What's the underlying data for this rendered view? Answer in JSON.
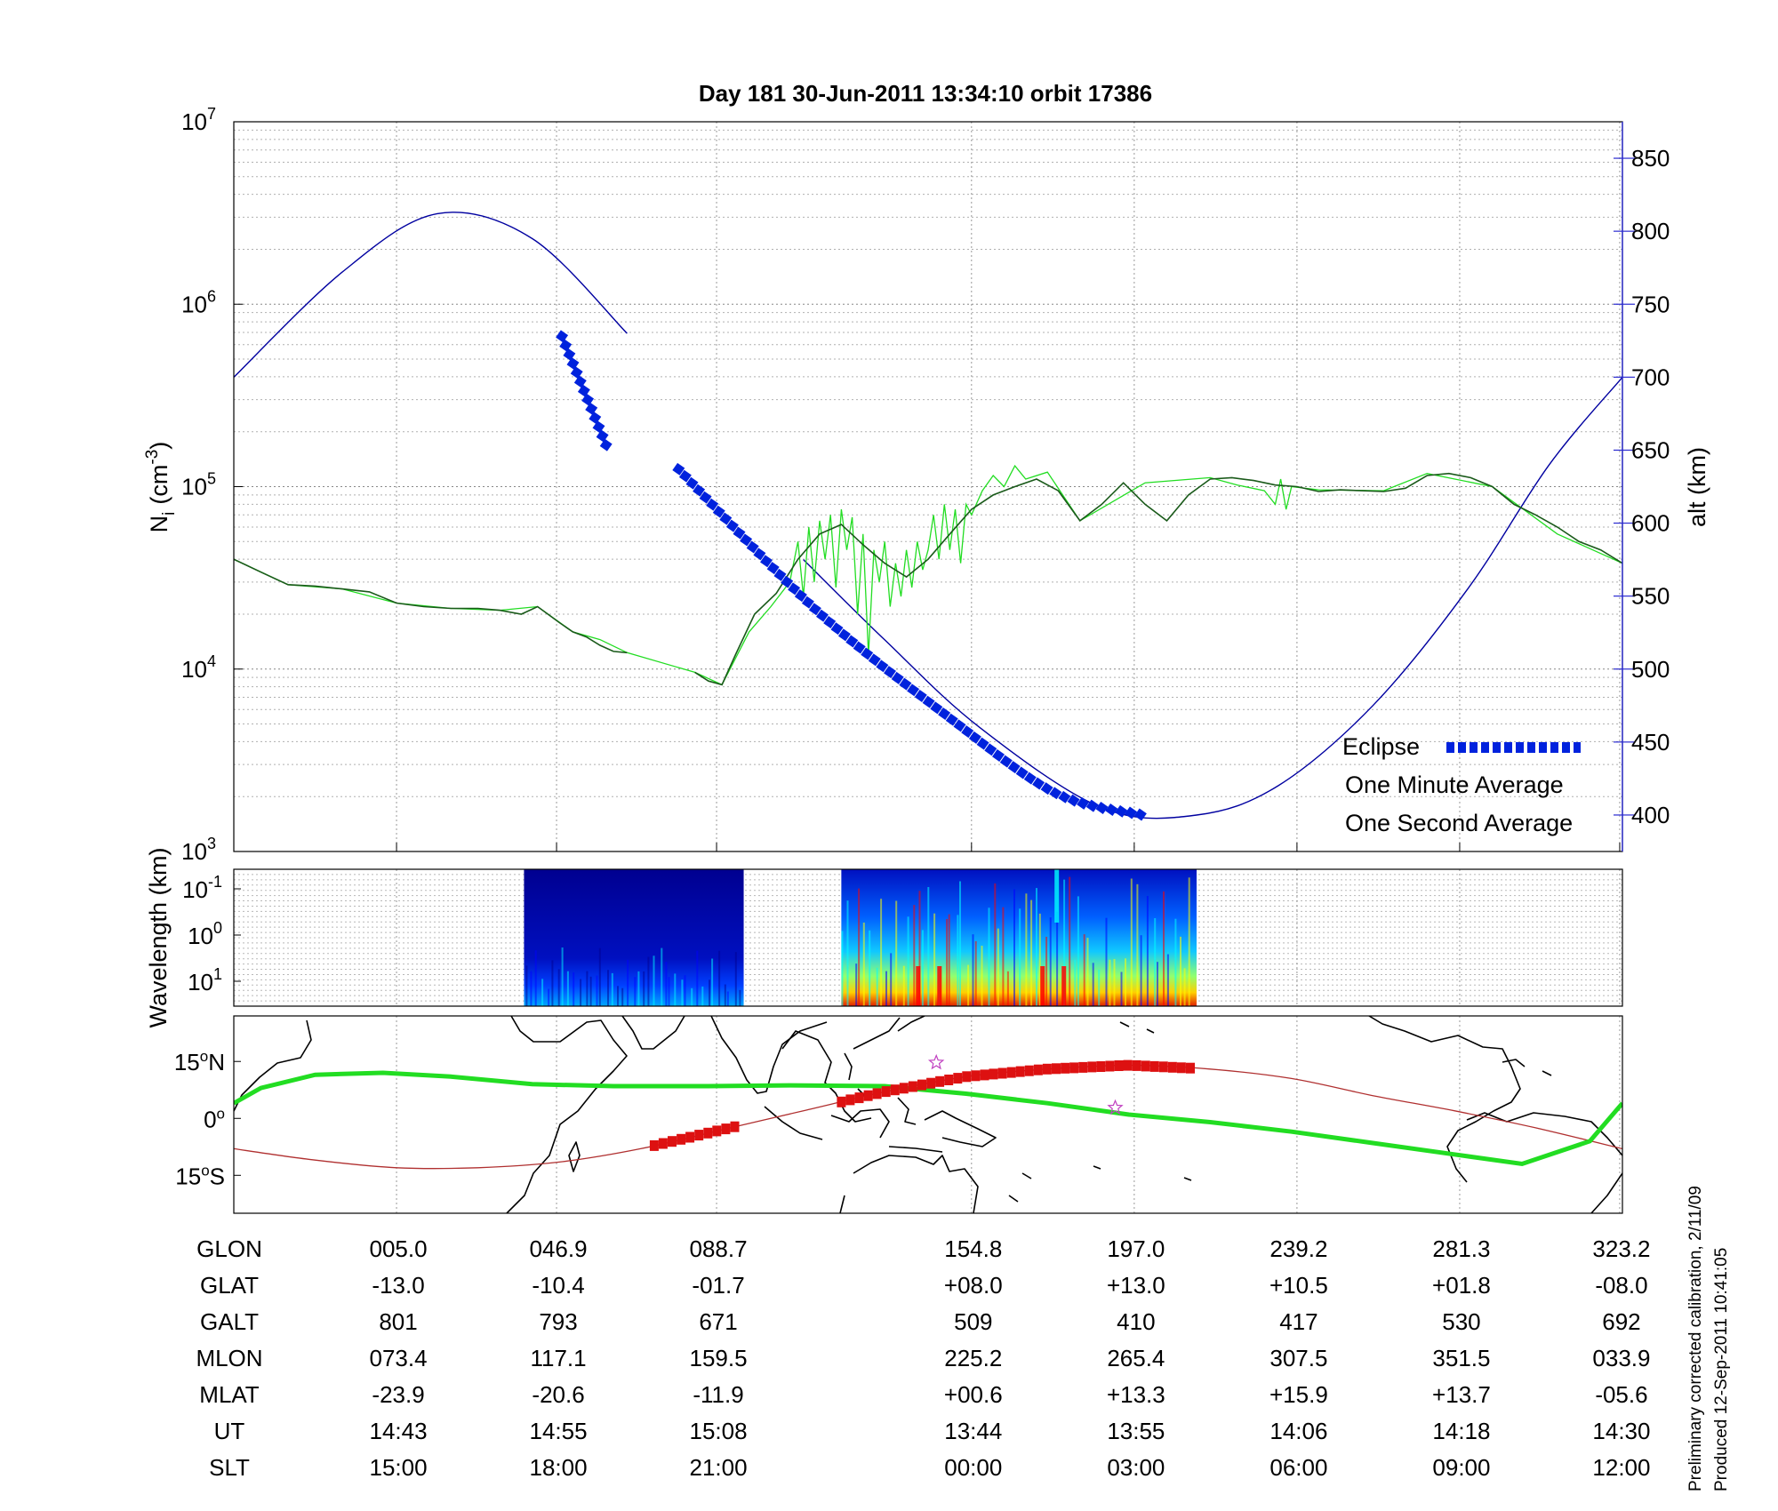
{
  "title": "Day 181  30-Jun-2011 13:34:10   orbit 17386",
  "colors": {
    "altitude": "#0000a0",
    "eclipse": "#0022dd",
    "one_minute": "#1a5a1a",
    "one_second": "#22dd22",
    "track_eclipse": "#dd1111",
    "track_line": "#b03030",
    "mag_equator": "#22dd22",
    "right_axis": "#2a2ad0"
  },
  "chart_data": [
    {
      "type": "line",
      "panel": "ion-density",
      "ylabel_main": "N",
      "ylabel_sub": "i",
      "ylabel_unit": "(cm",
      "ylabel_unit_exp": "-3",
      "ylabel_unit_close": ")",
      "y_scale": "log",
      "ylim": [
        1000,
        10000000
      ],
      "y_ticks": [
        {
          "base": "10",
          "exp": "3",
          "value": 1000
        },
        {
          "base": "10",
          "exp": "4",
          "value": 10000
        },
        {
          "base": "10",
          "exp": "5",
          "value": 100000
        },
        {
          "base": "10",
          "exp": "6",
          "value": 1000000
        },
        {
          "base": "10",
          "exp": "7",
          "value": 10000000
        }
      ],
      "y2label": "alt (km)",
      "y2lim": [
        375,
        875
      ],
      "y2_ticks": [
        "400",
        "450",
        "500",
        "550",
        "600",
        "650",
        "700",
        "750",
        "800",
        "850"
      ],
      "x_ticks_ut": [
        "14:43",
        "14:55",
        "15:08",
        "13:44",
        "13:55",
        "14:06",
        "14:18",
        "14:30"
      ],
      "grid": true,
      "legend_position": "bottom-right",
      "legend": [
        "Eclipse",
        "One Minute Average",
        "One Second Average"
      ],
      "series": [
        {
          "name": "One Minute Average",
          "x_minutes": [
            0,
            10,
            20,
            30,
            40,
            50,
            60,
            70,
            80,
            90,
            98,
            106,
            112,
            120,
            125,
            130,
            135,
            140,
            145,
            150,
            155,
            160,
            165,
            170,
            175,
            180,
            185,
            192,
            200,
            208,
            216,
            224,
            232,
            240,
            248,
            256,
            264,
            272,
            280,
            288,
            296,
            304,
            312,
            320,
            328,
            336,
            344,
            352,
            360,
            368,
            376,
            384,
            392,
            400,
            408,
            416,
            424,
            432,
            440,
            448,
            456,
            464,
            472,
            480,
            488,
            496,
            504,
            512
          ],
          "values": [
            40000,
            34000,
            29000,
            28500,
            27500,
            26500,
            23000,
            22000,
            21500,
            21500,
            21000,
            20000,
            22000,
            18000,
            16000,
            15000,
            13500,
            12500,
            12300,
            null,
            null,
            null,
            null,
            9600,
            8600,
            8200,
            12000,
            20000,
            26000,
            40000,
            55000,
            62000,
            48000,
            38000,
            32000,
            40000,
            55000,
            75000,
            90000,
            100000,
            110000,
            95000,
            65000,
            80000,
            105000,
            80000,
            65000,
            90000,
            110000,
            112000,
            108000,
            102000,
            100000,
            94000,
            96000,
            95000,
            94000,
            98000,
            115000,
            118000,
            112000,
            100000,
            80000,
            70000,
            60000,
            50000,
            45000,
            38000
          ]
        },
        {
          "name": "One Second Average",
          "x_minutes": [
            0,
            20,
            40,
            60,
            80,
            98,
            112,
            125,
            135,
            145,
            170,
            180,
            190,
            198,
            205,
            208,
            210,
            212,
            214,
            216,
            218,
            220,
            222,
            224,
            226,
            228,
            230,
            232,
            234,
            236,
            238,
            240,
            242,
            244,
            246,
            248,
            250,
            252,
            254,
            256,
            258,
            260,
            262,
            264,
            266,
            268,
            270,
            272,
            276,
            280,
            284,
            288,
            292,
            300,
            312,
            336,
            360,
            370,
            380,
            384,
            386,
            388,
            390,
            400,
            424,
            440,
            464,
            488,
            512
          ],
          "values": [
            40000,
            29000,
            27500,
            23000,
            21500,
            21000,
            22000,
            16000,
            14500,
            12300,
            9600,
            8200,
            16000,
            22000,
            30000,
            50000,
            25000,
            60000,
            30000,
            65000,
            40000,
            70000,
            28000,
            75000,
            45000,
            68000,
            20000,
            55000,
            12000,
            45000,
            30000,
            50000,
            22000,
            38000,
            25000,
            45000,
            28000,
            50000,
            35000,
            45000,
            70000,
            40000,
            80000,
            45000,
            75000,
            38000,
            80000,
            70000,
            95000,
            115000,
            100000,
            130000,
            110000,
            120000,
            65000,
            105000,
            112000,
            102000,
            95000,
            80000,
            110000,
            75000,
            100000,
            96000,
            95000,
            118000,
            100000,
            55000,
            38000
          ]
        },
        {
          "name": "altitude",
          "x_minutes": [
            0,
            40,
            75,
            110,
            145,
            175,
            210,
            240,
            275,
            320,
            355,
            385,
            420,
            455,
            485,
            512
          ],
          "values_km": [
            700,
            772,
            812,
            795,
            730,
            null,
            575,
            520,
            460,
            405,
            400,
            420,
            475,
            555,
            640,
            700
          ]
        },
        {
          "name": "Eclipse",
          "segments": [
            {
              "x_minutes": [
                121,
                138
              ],
              "values_km": [
                728,
                650
              ]
            },
            {
              "x_minutes": [
                164,
                215,
                265,
                303,
                335
              ],
              "values_km": [
                637,
                540,
                465,
                415,
                400
              ]
            }
          ]
        }
      ]
    },
    {
      "type": "heatmap",
      "panel": "wavelength-spectrogram",
      "ylabel": "Wavelength (km)",
      "y_ticks": [
        {
          "base": "10",
          "exp": "-1"
        },
        {
          "base": "10",
          "exp": "0"
        },
        {
          "base": "10",
          "exp": "1"
        }
      ],
      "blocks": [
        {
          "x_minutes": [
            107,
            188
          ],
          "intensity": "low"
        },
        {
          "x_minutes": [
            224,
            355
          ],
          "intensity": "high"
        }
      ],
      "colormap": [
        "#00008f",
        "#0000ff",
        "#00ffff",
        "#ffff00",
        "#ff0000",
        "#800000"
      ]
    },
    {
      "type": "map",
      "panel": "ground-track",
      "y_ticks": [
        {
          "deg": "15",
          "hemi": "N",
          "lat": 15
        },
        {
          "deg": "0",
          "hemi": "",
          "lat": 0
        },
        {
          "deg": "15",
          "hemi": "S",
          "lat": -15
        }
      ],
      "ylim": [
        -25,
        27
      ],
      "ground_track": {
        "x_minutes": [
          0,
          30,
          60,
          90,
          120,
          150,
          180,
          210,
          240,
          270,
          300,
          330,
          360,
          390,
          420,
          450,
          480,
          512
        ],
        "lat": [
          -8,
          -11,
          -13,
          -13,
          -11.5,
          -8,
          -3,
          2,
          7,
          11,
          13,
          14,
          13,
          10.5,
          6,
          2,
          -2.5,
          -8
        ]
      },
      "eclipse_track": [
        {
          "x_minutes": [
            155,
            188
          ]
        },
        {
          "x_minutes": [
            224,
            355
          ]
        }
      ],
      "magnetic_equator": {
        "x_minutes": [
          0,
          10,
          30,
          55,
          80,
          110,
          140,
          175,
          205,
          240,
          270,
          300,
          330,
          360,
          390,
          420,
          450,
          475,
          500,
          512
        ],
        "lat": [
          4,
          8,
          11.5,
          12,
          11,
          9,
          8.5,
          8.5,
          8.7,
          8.5,
          6.5,
          4,
          1,
          -1,
          -3.5,
          -6.5,
          -9.5,
          -12,
          -6,
          4
        ]
      },
      "stars": [
        {
          "x_minutes": 259,
          "lat": 14.7
        },
        {
          "x_minutes": 325,
          "lat": 2.8
        }
      ]
    }
  ],
  "table": {
    "rows": [
      {
        "label": "GLON",
        "values": [
          "005.0",
          "046.9",
          "088.7",
          "154.8",
          "197.0",
          "239.2",
          "281.3",
          "323.2"
        ]
      },
      {
        "label": "GLAT",
        "values": [
          "-13.0",
          "-10.4",
          "-01.7",
          "+08.0",
          "+13.0",
          "+10.5",
          "+01.8",
          "-08.0"
        ]
      },
      {
        "label": "GALT",
        "values": [
          "801",
          "793",
          "671",
          "509",
          "410",
          "417",
          "530",
          "692"
        ]
      },
      {
        "label": "MLON",
        "values": [
          "073.4",
          "117.1",
          "159.5",
          "225.2",
          "265.4",
          "307.5",
          "351.5",
          "033.9"
        ]
      },
      {
        "label": "MLAT",
        "values": [
          "-23.9",
          "-20.6",
          "-11.9",
          "+00.6",
          "+13.3",
          "+15.9",
          "+13.7",
          "-05.6"
        ]
      },
      {
        "label": "UT",
        "values": [
          "14:43",
          "14:55",
          "15:08",
          "13:44",
          "13:55",
          "14:06",
          "14:18",
          "14:30"
        ]
      },
      {
        "label": "SLT",
        "values": [
          "15:00",
          "18:00",
          "21:00",
          "00:00",
          "03:00",
          "06:00",
          "09:00",
          "12:00"
        ]
      }
    ]
  },
  "footnote_line1": "Preliminary corrected calibration, 2/11/09",
  "footnote_line2": "Produced 12-Sep-2011 10:41:05"
}
